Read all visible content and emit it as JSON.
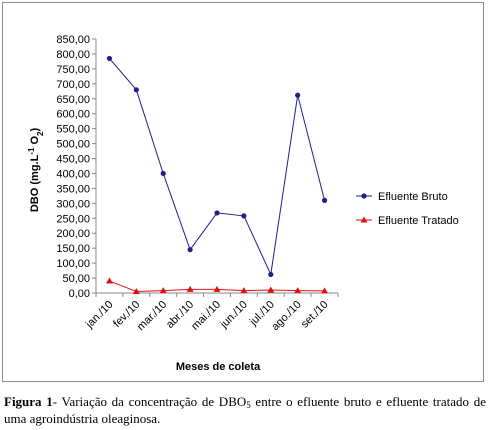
{
  "chart_data": {
    "type": "line",
    "categories": [
      "jan./10",
      "fev./10",
      "mar./10",
      "abr./10",
      "mai./10",
      "jun./10",
      "jul./10",
      "ago./10",
      "set./10"
    ],
    "series": [
      {
        "name": "Efluente Bruto",
        "color": "#1f1f8f",
        "marker": "circle",
        "values": [
          785,
          680,
          400,
          145,
          268,
          258,
          62,
          662,
          310
        ]
      },
      {
        "name": "Efluente Tratado",
        "color": "#e01010",
        "marker": "triangle",
        "values": [
          40,
          5,
          8,
          12,
          12,
          8,
          10,
          8,
          7
        ]
      }
    ],
    "ylim": [
      0,
      850
    ],
    "ystep": 50,
    "ytick_labels": [
      "0,00",
      "50,00",
      "100,00",
      "150,00",
      "200,00",
      "250,00",
      "300,00",
      "350,00",
      "400,00",
      "450,00",
      "500,00",
      "550,00",
      "600,00",
      "650,00",
      "700,00",
      "750,00",
      "800,00",
      "850,00"
    ],
    "xlabel": "Meses de coleta",
    "ylabel": {
      "main": "DBO (mg.L",
      "sup": "-1",
      "mid": " O",
      "sub": "2",
      "end": ")"
    },
    "legend_position": "right",
    "grid": false
  },
  "caption": {
    "label": "Figura 1",
    "text_a": "- Variação da concentração de DBO",
    "sub": "5",
    "text_b": " entre o efluente bruto e  efluente tratado de uma agroindústria oleaginosa."
  }
}
